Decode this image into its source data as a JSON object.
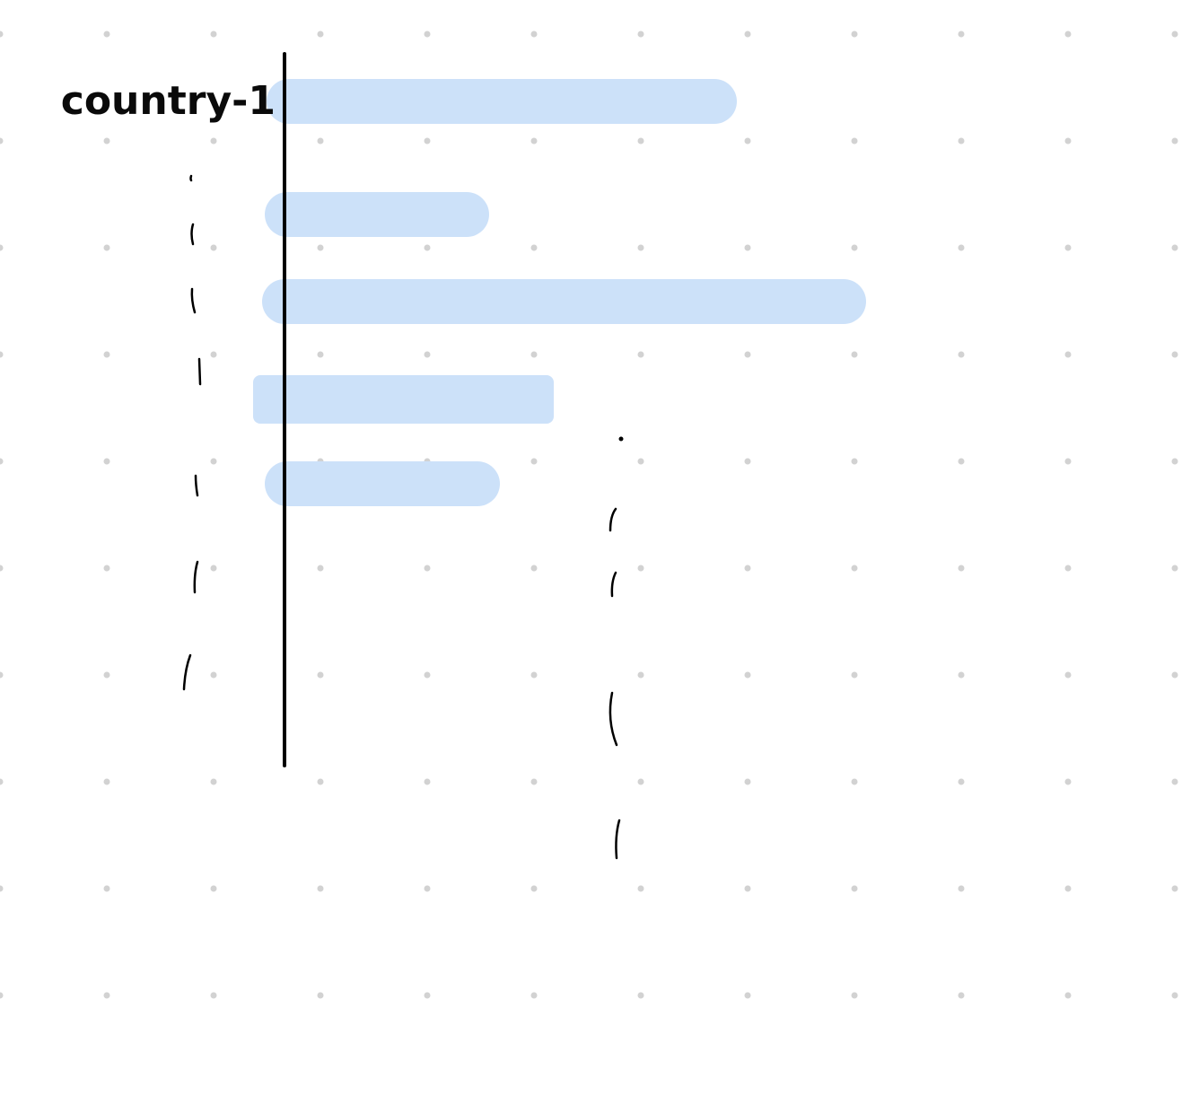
{
  "canvas": {
    "background_color": "#ffffff",
    "dot_color": "#d2d2d2"
  },
  "chart_data": {
    "type": "bar",
    "orientation": "horizontal",
    "title": "",
    "xlabel": "",
    "ylabel": "",
    "categories": [
      "country-1",
      "",
      "",
      "",
      ""
    ],
    "values": [
      4.2,
      1.9,
      5.4,
      2.5,
      2.0
    ],
    "xlim": [
      0,
      10
    ],
    "bar_color": "#cce1f9",
    "axis_color": "#000000",
    "grid": false,
    "legend": "none"
  }
}
